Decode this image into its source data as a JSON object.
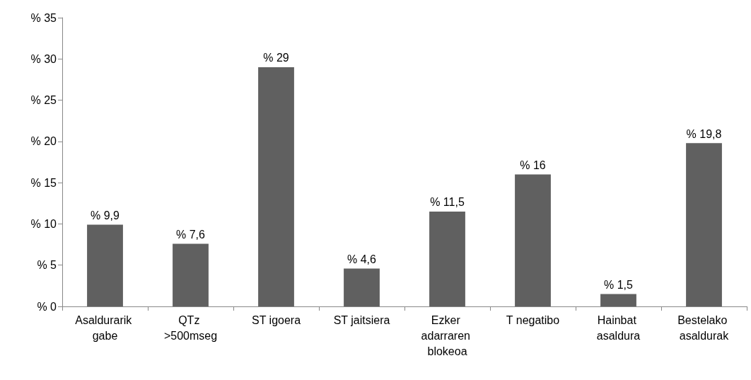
{
  "chart_data": {
    "type": "bar",
    "categories": [
      "Asaldurarik gabe",
      "QTz >500mseg",
      "ST igoera",
      "ST jaitsiera",
      "Ezker adarraren blokeoa",
      "T negatibo",
      "Hainbat asaldura",
      "Bestelako asaldurak"
    ],
    "values": [
      9.9,
      7.6,
      29,
      4.6,
      11.5,
      16,
      1.5,
      19.8
    ],
    "value_labels": [
      "% 9,9",
      "% 7,6",
      "% 29",
      "% 4,6",
      "% 11,5",
      "% 16",
      "% 1,5",
      "% 19,8"
    ],
    "color": "#606060",
    "ylim": [
      0,
      35
    ],
    "yticks": [
      {
        "value": 0,
        "label": "% 0"
      },
      {
        "value": 5,
        "label": "% 5"
      },
      {
        "value": 10,
        "label": "% 10"
      },
      {
        "value": 15,
        "label": "% 15"
      },
      {
        "value": 20,
        "label": "% 20"
      },
      {
        "value": 25,
        "label": "% 25"
      },
      {
        "value": 30,
        "label": "% 30"
      },
      {
        "value": 35,
        "label": "% 35"
      }
    ],
    "grid": false
  }
}
